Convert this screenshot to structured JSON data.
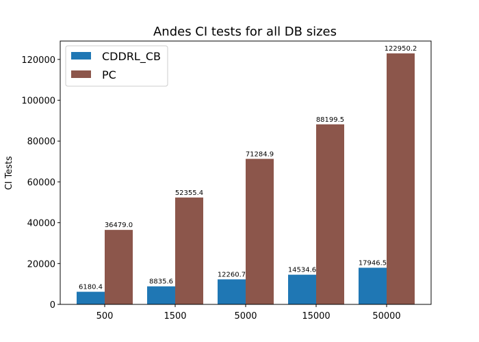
{
  "chart_data": {
    "type": "bar",
    "title": "Andes CI tests for all DB sizes",
    "xlabel": "",
    "ylabel": "CI Tests",
    "categories": [
      "500",
      "1500",
      "5000",
      "15000",
      "50000"
    ],
    "series": [
      {
        "name": "CDDRL_CB",
        "color": "#1f77b4",
        "values": [
          6180.4,
          8835.6,
          12260.7,
          14534.6,
          17946.5
        ],
        "labels": [
          "6180.4",
          "8835.6",
          "12260.7",
          "14534.6",
          "17946.5"
        ]
      },
      {
        "name": "PC",
        "color": "#8c564b",
        "values": [
          36479.0,
          52355.4,
          71284.9,
          88199.5,
          122950.2
        ],
        "labels": [
          "36479.0",
          "52355.4",
          "71284.9",
          "88199.5",
          "122950.2"
        ]
      }
    ],
    "ylim": [
      0,
      129000
    ],
    "yticks": [
      0,
      20000,
      40000,
      60000,
      80000,
      100000,
      120000
    ],
    "ytick_labels": [
      "0",
      "20000",
      "40000",
      "60000",
      "80000",
      "100000",
      "120000"
    ],
    "grid": false,
    "legend_position": "top-left"
  }
}
